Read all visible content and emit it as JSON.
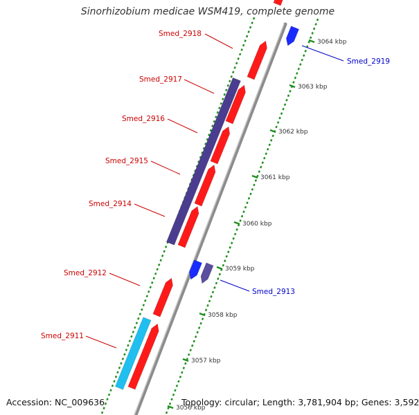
{
  "map": {
    "title": "Sinorhizobium medicae WSM419, complete genome",
    "accession": "Accession: NC_009636",
    "summary": "Topology: circular; Length: 3,781,904 bp; Genes: 3,592"
  },
  "colors": {
    "background": "#ffffff",
    "backbone": "#8c8c8c",
    "tick": "#1f8f1f",
    "cds_forward": "#ff1a1a",
    "cds_forward_label": "#cc0000",
    "cds_reverse": "#1a2bff",
    "cds_reverse_label": "#0000cc",
    "highlight_forward": "#4a3d8f",
    "highlight_reverse": "#5a4e9e",
    "other_forward": "#1fc0f0",
    "ruler_text": "#333333"
  },
  "ruler": {
    "unit": "kbp",
    "labels": [
      "3064 kbp",
      "3063 kbp",
      "3062 kbp",
      "3061 kbp",
      "3060 kbp",
      "3059 kbp",
      "3058 kbp",
      "3057 kbp",
      "3056 kbp"
    ]
  },
  "genes": {
    "forward_labeled": [
      {
        "name": "Smed_2918"
      },
      {
        "name": "Smed_2917"
      },
      {
        "name": "Smed_2916"
      },
      {
        "name": "Smed_2915"
      },
      {
        "name": "Smed_2914"
      },
      {
        "name": "Smed_2912"
      },
      {
        "name": "Smed_2911"
      }
    ],
    "reverse_labeled": [
      {
        "name": "Smed_2919"
      },
      {
        "name": "Smed_2913"
      }
    ]
  }
}
